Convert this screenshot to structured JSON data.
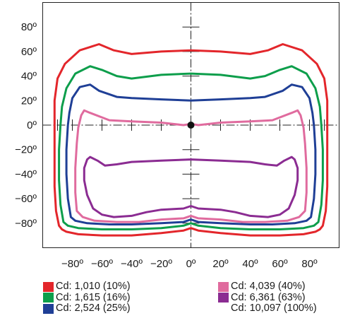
{
  "chart_data": {
    "type": "polar-isocandela",
    "title": "",
    "xlabel": "",
    "ylabel": "",
    "xlim": [
      -100,
      100
    ],
    "ylim": [
      -100,
      100
    ],
    "x_ticks": [
      -80,
      -60,
      -40,
      -20,
      0,
      20,
      40,
      60,
      80
    ],
    "y_ticks": [
      80,
      60,
      40,
      20,
      0,
      -20,
      -40,
      -60,
      -80
    ],
    "x_tick_labels": [
      "−80º",
      "−60º",
      "−40º",
      "−20º",
      "0º",
      "20º",
      "40º",
      "60º",
      "80º"
    ],
    "y_tick_labels": [
      "80º",
      "60º",
      "40º",
      "20º",
      "0º",
      "−20º",
      "−40º",
      "−60º",
      "−80º"
    ],
    "grid": false,
    "legend_position": "bottom",
    "center_point": {
      "x": 0,
      "y": 0
    },
    "series": [
      {
        "name": "Cd: 1,010 (10%)",
        "color": "#e3262b",
        "points": [
          [
            -89,
            -82
          ],
          [
            -87,
            -85
          ],
          [
            -84,
            -87
          ],
          [
            -76,
            -89
          ],
          [
            -60,
            -90
          ],
          [
            -40,
            -90
          ],
          [
            -20,
            -88
          ],
          [
            -5,
            -86
          ],
          [
            0,
            -84
          ],
          [
            5,
            -86
          ],
          [
            20,
            -88
          ],
          [
            40,
            -90
          ],
          [
            60,
            -90
          ],
          [
            76,
            -89
          ],
          [
            84,
            -87
          ],
          [
            87,
            -85
          ],
          [
            89,
            -82
          ],
          [
            91,
            -70
          ],
          [
            92,
            -50
          ],
          [
            92,
            -25
          ],
          [
            92,
            0
          ],
          [
            92,
            20
          ],
          [
            90,
            38
          ],
          [
            85,
            50
          ],
          [
            75,
            61
          ],
          [
            62,
            66
          ],
          [
            52,
            61
          ],
          [
            40,
            58
          ],
          [
            20,
            60
          ],
          [
            0,
            61
          ],
          [
            -20,
            60
          ],
          [
            -40,
            58
          ],
          [
            -52,
            61
          ],
          [
            -62,
            66
          ],
          [
            -75,
            61
          ],
          [
            -85,
            50
          ],
          [
            -90,
            38
          ],
          [
            -92,
            20
          ],
          [
            -92,
            0
          ],
          [
            -92,
            -25
          ],
          [
            -92,
            -50
          ],
          [
            -91,
            -70
          ]
        ]
      },
      {
        "name": "Cd: 1,615 (16%)",
        "color": "#0d9e4b",
        "points": [
          [
            -86,
            -79
          ],
          [
            -83,
            -82
          ],
          [
            -76,
            -84
          ],
          [
            -60,
            -85
          ],
          [
            -40,
            -85
          ],
          [
            -20,
            -84
          ],
          [
            -5,
            -82
          ],
          [
            0,
            -80
          ],
          [
            5,
            -82
          ],
          [
            20,
            -84
          ],
          [
            40,
            -85
          ],
          [
            60,
            -85
          ],
          [
            76,
            -84
          ],
          [
            83,
            -82
          ],
          [
            86,
            -79
          ],
          [
            88,
            -65
          ],
          [
            89,
            -45
          ],
          [
            89,
            -20
          ],
          [
            88,
            0
          ],
          [
            87,
            15
          ],
          [
            84,
            30
          ],
          [
            78,
            42
          ],
          [
            68,
            48
          ],
          [
            60,
            45
          ],
          [
            50,
            40
          ],
          [
            40,
            38
          ],
          [
            20,
            41
          ],
          [
            0,
            42
          ],
          [
            -20,
            41
          ],
          [
            -40,
            38
          ],
          [
            -50,
            40
          ],
          [
            -60,
            45
          ],
          [
            -68,
            48
          ],
          [
            -78,
            42
          ],
          [
            -84,
            30
          ],
          [
            -87,
            15
          ],
          [
            -88,
            0
          ],
          [
            -89,
            -20
          ],
          [
            -89,
            -45
          ],
          [
            -88,
            -65
          ]
        ]
      },
      {
        "name": "Cd: 2,524 (25%)",
        "color": "#1f3f96",
        "points": [
          [
            -81,
            -75
          ],
          [
            -78,
            -78
          ],
          [
            -70,
            -80
          ],
          [
            -55,
            -81
          ],
          [
            -40,
            -81
          ],
          [
            -20,
            -80
          ],
          [
            -5,
            -79
          ],
          [
            0,
            -77
          ],
          [
            5,
            -79
          ],
          [
            20,
            -80
          ],
          [
            40,
            -81
          ],
          [
            55,
            -81
          ],
          [
            70,
            -80
          ],
          [
            78,
            -78
          ],
          [
            81,
            -75
          ],
          [
            83,
            -60
          ],
          [
            84,
            -40
          ],
          [
            84,
            -20
          ],
          [
            83,
            0
          ],
          [
            82,
            10
          ],
          [
            80,
            22
          ],
          [
            75,
            31
          ],
          [
            68,
            33
          ],
          [
            62,
            28
          ],
          [
            50,
            23
          ],
          [
            40,
            22
          ],
          [
            20,
            21
          ],
          [
            0,
            20
          ],
          [
            -20,
            21
          ],
          [
            -40,
            22
          ],
          [
            -50,
            23
          ],
          [
            -62,
            28
          ],
          [
            -68,
            33
          ],
          [
            -75,
            31
          ],
          [
            -80,
            22
          ],
          [
            -82,
            10
          ],
          [
            -83,
            0
          ],
          [
            -84,
            -20
          ],
          [
            -84,
            -40
          ],
          [
            -83,
            -60
          ]
        ]
      },
      {
        "name": "Cd: 4,039 (40%)",
        "color": "#e06b9e",
        "points": [
          [
            -77,
            -70
          ],
          [
            -73,
            -75
          ],
          [
            -65,
            -78
          ],
          [
            -50,
            -79
          ],
          [
            -35,
            -79
          ],
          [
            -20,
            -77
          ],
          [
            -5,
            -76
          ],
          [
            0,
            -74
          ],
          [
            5,
            -76
          ],
          [
            20,
            -77
          ],
          [
            35,
            -79
          ],
          [
            50,
            -79
          ],
          [
            65,
            -78
          ],
          [
            73,
            -75
          ],
          [
            77,
            -70
          ],
          [
            78,
            -55
          ],
          [
            78,
            -35
          ],
          [
            77,
            -15
          ],
          [
            76,
            -2
          ],
          [
            74,
            8
          ],
          [
            72,
            12
          ],
          [
            68,
            10
          ],
          [
            55,
            4
          ],
          [
            40,
            3
          ],
          [
            20,
            2
          ],
          [
            5,
            0
          ],
          [
            0,
            1
          ],
          [
            -5,
            0
          ],
          [
            -20,
            2
          ],
          [
            -40,
            3
          ],
          [
            -55,
            4
          ],
          [
            -68,
            10
          ],
          [
            -72,
            12
          ],
          [
            -74,
            8
          ],
          [
            -76,
            -2
          ],
          [
            -77,
            -15
          ],
          [
            -78,
            -35
          ],
          [
            -78,
            -55
          ]
        ]
      },
      {
        "name": "Cd: 6,361 (63%)",
        "color": "#8b2c92",
        "points": [
          [
            -66,
            -68
          ],
          [
            -60,
            -73
          ],
          [
            -52,
            -75
          ],
          [
            -40,
            -74
          ],
          [
            -30,
            -71
          ],
          [
            -20,
            -69
          ],
          [
            -5,
            -68
          ],
          [
            0,
            -66
          ],
          [
            5,
            -68
          ],
          [
            20,
            -69
          ],
          [
            30,
            -71
          ],
          [
            40,
            -74
          ],
          [
            52,
            -75
          ],
          [
            60,
            -73
          ],
          [
            66,
            -68
          ],
          [
            70,
            -57
          ],
          [
            72,
            -45
          ],
          [
            72,
            -35
          ],
          [
            70,
            -28
          ],
          [
            68,
            -26
          ],
          [
            63,
            -29
          ],
          [
            58,
            -33
          ],
          [
            50,
            -32
          ],
          [
            40,
            -30
          ],
          [
            20,
            -29
          ],
          [
            0,
            -28
          ],
          [
            -20,
            -29
          ],
          [
            -40,
            -30
          ],
          [
            -50,
            -32
          ],
          [
            -58,
            -33
          ],
          [
            -63,
            -29
          ],
          [
            -68,
            -26
          ],
          [
            -70,
            -28
          ],
          [
            -72,
            -35
          ],
          [
            -72,
            -45
          ],
          [
            -70,
            -57
          ]
        ]
      }
    ],
    "legend": [
      {
        "label": "Cd: 1,010 (10%)",
        "color": "#e3262b"
      },
      {
        "label": "Cd: 1,615 (16%)",
        "color": "#0d9e4b"
      },
      {
        "label": "Cd: 2,524 (25%)",
        "color": "#1f3f96"
      },
      {
        "label": "Cd: 4,039 (40%)",
        "color": "#e06b9e"
      },
      {
        "label": "Cd: 6,361 (63%)",
        "color": "#8b2c92"
      },
      {
        "label": "Cd: 10,097 (100%)",
        "color": ""
      }
    ]
  }
}
